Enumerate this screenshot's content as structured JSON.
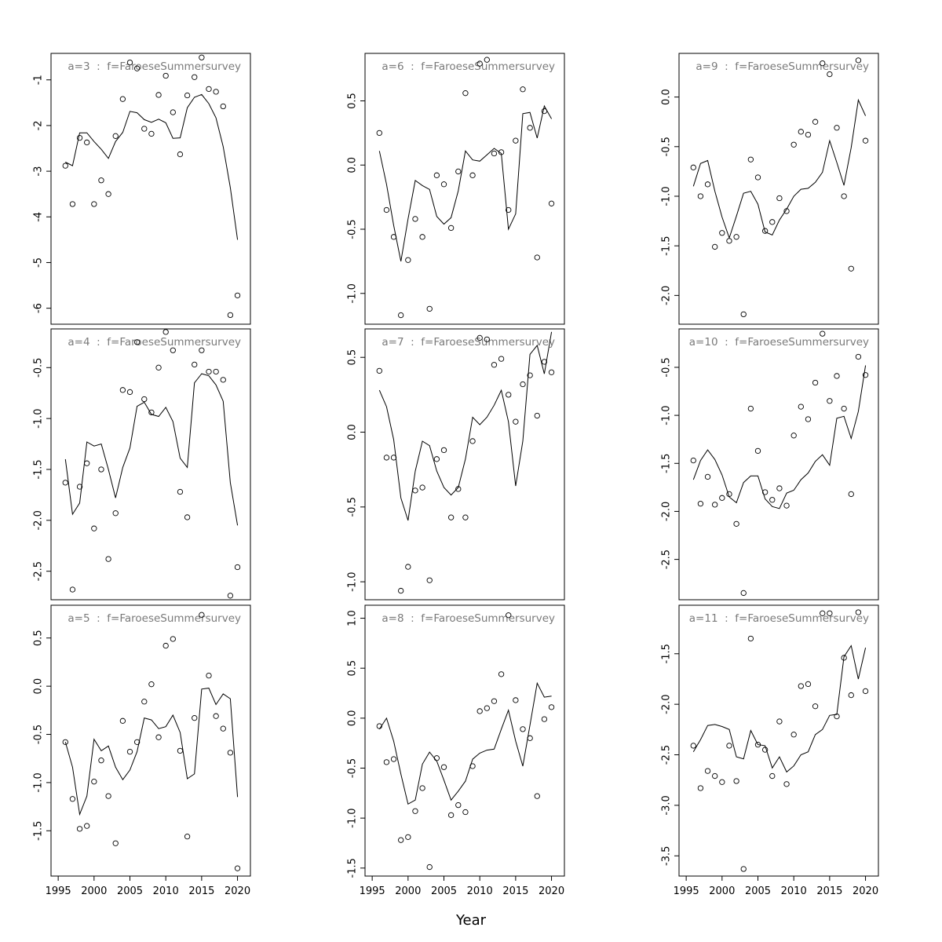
{
  "figure": {
    "xlabel": "Year",
    "x_ticks": [
      1995,
      2000,
      2005,
      2010,
      2015,
      2020
    ]
  },
  "chart_data": [
    {
      "type": "line",
      "title": "a=3  :  f=FaroeseSummersurvey",
      "x": [
        1996,
        1997,
        1998,
        1999,
        2000,
        2001,
        2002,
        2003,
        2004,
        2005,
        2006,
        2007,
        2008,
        2009,
        2010,
        2011,
        2012,
        2013,
        2014,
        2015,
        2016,
        2017,
        2018,
        2019,
        2020
      ],
      "observed": [
        -2.88,
        -3.72,
        -2.27,
        -2.37,
        -3.72,
        -3.2,
        -3.5,
        -2.23,
        -1.42,
        -0.62,
        -0.75,
        -2.07,
        -2.18,
        -1.33,
        -0.91,
        -1.71,
        -2.63,
        -1.34,
        -0.94,
        -0.51,
        -1.2,
        -1.26,
        -1.58,
        -6.15,
        -5.72
      ],
      "fitted": [
        -2.8,
        -2.88,
        -2.16,
        -2.16,
        -2.35,
        -2.52,
        -2.72,
        -2.35,
        -2.15,
        -1.69,
        -1.72,
        -1.87,
        -1.93,
        -1.86,
        -1.94,
        -2.28,
        -2.27,
        -1.61,
        -1.38,
        -1.32,
        -1.52,
        -1.83,
        -2.46,
        -3.36,
        -4.5
      ],
      "ylim": [
        -6.35,
        -0.42
      ],
      "y_ticks": [
        -6,
        -5,
        -4,
        -3,
        -2,
        -1
      ]
    },
    {
      "type": "line",
      "title": "a=4  :  f=FaroeseSummersurvey",
      "x": [
        1996,
        1997,
        1998,
        1999,
        2000,
        2001,
        2002,
        2003,
        2004,
        2005,
        2006,
        2007,
        2008,
        2009,
        2010,
        2011,
        2012,
        2013,
        2014,
        2015,
        2016,
        2017,
        2018,
        2019,
        2020
      ],
      "observed": [
        -1.63,
        -2.68,
        -1.67,
        -1.44,
        -2.08,
        -1.5,
        -2.38,
        -1.93,
        -0.72,
        -0.74,
        -0.25,
        -0.81,
        -0.94,
        -0.5,
        -0.15,
        -0.33,
        -1.72,
        -1.97,
        -0.47,
        -0.33,
        -0.54,
        -0.54,
        -0.62,
        -2.74,
        -2.46
      ],
      "fitted": [
        -1.4,
        -1.94,
        -1.83,
        -1.23,
        -1.27,
        -1.25,
        -1.5,
        -1.78,
        -1.48,
        -1.29,
        -0.88,
        -0.84,
        -0.96,
        -0.98,
        -0.89,
        -1.03,
        -1.39,
        -1.48,
        -0.65,
        -0.56,
        -0.58,
        -0.67,
        -0.83,
        -1.63,
        -2.05
      ],
      "ylim": [
        -2.78,
        -0.12
      ],
      "y_ticks": [
        -2.5,
        -2.0,
        -1.5,
        -1.0,
        -0.5
      ]
    },
    {
      "type": "line",
      "title": "a=5  :  f=FaroeseSummersurvey",
      "x": [
        1996,
        1997,
        1998,
        1999,
        2000,
        2001,
        2002,
        2003,
        2004,
        2005,
        2006,
        2007,
        2008,
        2009,
        2010,
        2011,
        2012,
        2013,
        2014,
        2015,
        2016,
        2017,
        2018,
        2019,
        2020
      ],
      "observed": [
        -0.58,
        -1.17,
        -1.48,
        -1.45,
        -0.99,
        -0.77,
        -1.14,
        -1.63,
        -0.36,
        -0.68,
        -0.58,
        -0.16,
        0.02,
        -0.53,
        0.42,
        0.49,
        -0.67,
        -1.56,
        -0.33,
        0.74,
        0.11,
        -0.31,
        -0.44,
        -0.69,
        -1.89
      ],
      "fitted": [
        -0.58,
        -0.84,
        -1.33,
        -1.14,
        -0.55,
        -0.67,
        -0.62,
        -0.84,
        -0.97,
        -0.87,
        -0.68,
        -0.33,
        -0.35,
        -0.44,
        -0.42,
        -0.3,
        -0.48,
        -0.96,
        -0.91,
        -0.03,
        -0.02,
        -0.19,
        -0.08,
        -0.13,
        -1.15
      ],
      "ylim": [
        -1.97,
        0.84
      ],
      "y_ticks": [
        -1.5,
        -1.0,
        -0.5,
        0.0,
        0.5
      ]
    },
    {
      "type": "line",
      "title": "a=6  :  f=FaroeseSummersurvey",
      "x": [
        1996,
        1997,
        1998,
        1999,
        2000,
        2001,
        2002,
        2003,
        2004,
        2005,
        2006,
        2007,
        2008,
        2009,
        2010,
        2011,
        2012,
        2013,
        2014,
        2015,
        2016,
        2017,
        2018,
        2019,
        2020
      ],
      "observed": [
        0.25,
        -0.35,
        -0.56,
        -1.17,
        -0.74,
        -0.42,
        -0.56,
        -1.12,
        -0.08,
        -0.15,
        -0.49,
        -0.05,
        0.56,
        -0.08,
        0.79,
        0.82,
        0.09,
        0.1,
        -0.35,
        0.19,
        0.59,
        0.29,
        -0.72,
        0.42,
        -0.3
      ],
      "fitted": [
        0.11,
        -0.15,
        -0.47,
        -0.75,
        -0.42,
        -0.12,
        -0.16,
        -0.19,
        -0.4,
        -0.46,
        -0.41,
        -0.2,
        0.11,
        0.04,
        0.03,
        0.08,
        0.13,
        0.09,
        -0.5,
        -0.38,
        0.4,
        0.41,
        0.21,
        0.46,
        0.36
      ],
      "ylim": [
        -1.24,
        0.87
      ],
      "y_ticks": [
        -1.0,
        -0.5,
        0.0,
        0.5
      ]
    },
    {
      "type": "line",
      "title": "a=7  :  f=FaroeseSummersurvey",
      "x": [
        1996,
        1997,
        1998,
        1999,
        2000,
        2001,
        2002,
        2003,
        2004,
        2005,
        2006,
        2007,
        2008,
        2009,
        2010,
        2011,
        2012,
        2013,
        2014,
        2015,
        2016,
        2017,
        2018,
        2019,
        2020
      ],
      "observed": [
        0.41,
        -0.17,
        -0.17,
        -1.06,
        -0.9,
        -0.39,
        -0.37,
        -0.99,
        -0.18,
        -0.12,
        -0.57,
        -0.38,
        -0.57,
        -0.06,
        0.63,
        0.62,
        0.45,
        0.49,
        0.25,
        0.07,
        0.32,
        0.38,
        0.11,
        0.47,
        0.4
      ],
      "fitted": [
        0.28,
        0.17,
        -0.05,
        -0.44,
        -0.59,
        -0.26,
        -0.06,
        -0.09,
        -0.26,
        -0.37,
        -0.42,
        -0.37,
        -0.18,
        0.1,
        0.05,
        0.1,
        0.18,
        0.28,
        0.07,
        -0.36,
        -0.06,
        0.52,
        0.58,
        0.39,
        0.67
      ],
      "ylim": [
        -1.12,
        0.69
      ],
      "y_ticks": [
        -1.0,
        -0.5,
        0.0,
        0.5
      ]
    },
    {
      "type": "line",
      "title": "a=8  :  f=FaroeseSummersurvey",
      "x": [
        1996,
        1997,
        1998,
        1999,
        2000,
        2001,
        2002,
        2003,
        2004,
        2005,
        2006,
        2007,
        2008,
        2009,
        2010,
        2011,
        2012,
        2013,
        2014,
        2015,
        2016,
        2017,
        2018,
        2019,
        2020
      ],
      "observed": [
        -0.08,
        -0.44,
        -0.41,
        -1.22,
        -1.19,
        -0.93,
        -0.7,
        -1.49,
        -0.4,
        -0.49,
        -0.97,
        -0.87,
        -0.94,
        -0.48,
        0.07,
        0.1,
        0.17,
        0.44,
        1.03,
        0.18,
        -0.11,
        -0.2,
        -0.78,
        -0.01,
        0.11
      ],
      "fitted": [
        -0.11,
        0.0,
        -0.23,
        -0.56,
        -0.86,
        -0.82,
        -0.46,
        -0.34,
        -0.43,
        -0.62,
        -0.82,
        -0.73,
        -0.63,
        -0.41,
        -0.35,
        -0.32,
        -0.31,
        -0.11,
        0.08,
        -0.23,
        -0.48,
        -0.07,
        0.35,
        0.21,
        0.22
      ],
      "ylim": [
        -1.58,
        1.13
      ],
      "y_ticks": [
        -1.5,
        -1.0,
        -0.5,
        0.0,
        0.5,
        1.0
      ]
    },
    {
      "type": "line",
      "title": "a=9  :  f=FaroeseSummersurvey",
      "x": [
        1996,
        1997,
        1998,
        1999,
        2000,
        2001,
        2002,
        2003,
        2004,
        2005,
        2006,
        2007,
        2008,
        2009,
        2010,
        2011,
        2012,
        2013,
        2014,
        2015,
        2016,
        2017,
        2018,
        2019,
        2020
      ],
      "observed": [
        -0.71,
        -1.0,
        -0.88,
        -1.51,
        -1.37,
        -1.45,
        -1.41,
        -2.19,
        -0.63,
        -0.81,
        -1.35,
        -1.26,
        -1.02,
        -1.15,
        -0.48,
        -0.35,
        -0.38,
        -0.25,
        0.34,
        0.23,
        -0.31,
        -1.0,
        -1.73,
        0.37,
        -0.44
      ],
      "fitted": [
        -0.9,
        -0.67,
        -0.64,
        -0.95,
        -1.21,
        -1.42,
        -1.2,
        -0.97,
        -0.95,
        -1.08,
        -1.36,
        -1.39,
        -1.24,
        -1.13,
        -1.0,
        -0.93,
        -0.92,
        -0.86,
        -0.76,
        -0.44,
        -0.66,
        -0.89,
        -0.51,
        -0.03,
        -0.19
      ],
      "ylim": [
        -2.29,
        0.44
      ],
      "y_ticks": [
        -2.0,
        -1.5,
        -1.0,
        -0.5,
        0.0
      ]
    },
    {
      "type": "line",
      "title": "a=10  :  f=FaroeseSummersurvey",
      "x": [
        1996,
        1997,
        1998,
        1999,
        2000,
        2001,
        2002,
        2003,
        2004,
        2005,
        2006,
        2007,
        2008,
        2009,
        2010,
        2011,
        2012,
        2013,
        2014,
        2015,
        2016,
        2017,
        2018,
        2019,
        2020
      ],
      "observed": [
        -1.47,
        -1.92,
        -1.64,
        -1.93,
        -1.86,
        -1.82,
        -2.13,
        -2.85,
        -0.93,
        -1.37,
        -1.8,
        -1.88,
        -1.76,
        -1.94,
        -1.21,
        -0.91,
        -1.04,
        -0.66,
        -0.15,
        -0.85,
        -0.59,
        -0.93,
        -1.82,
        -0.39,
        -0.58
      ],
      "fitted": [
        -1.67,
        -1.47,
        -1.36,
        -1.46,
        -1.62,
        -1.85,
        -1.91,
        -1.7,
        -1.63,
        -1.63,
        -1.87,
        -1.95,
        -1.97,
        -1.81,
        -1.78,
        -1.67,
        -1.6,
        -1.48,
        -1.41,
        -1.52,
        -1.03,
        -1.01,
        -1.24,
        -0.96,
        -0.48
      ],
      "ylim": [
        -2.92,
        -0.1
      ],
      "y_ticks": [
        -2.5,
        -2.0,
        -1.5,
        -1.0,
        -0.5
      ]
    },
    {
      "type": "line",
      "title": "a=11  :  f=FaroeseSummersurvey",
      "x": [
        1996,
        1997,
        1998,
        1999,
        2000,
        2001,
        2002,
        2003,
        2004,
        2005,
        2006,
        2007,
        2008,
        2009,
        2010,
        2011,
        2012,
        2013,
        2014,
        2015,
        2016,
        2017,
        2018,
        2019,
        2020
      ],
      "observed": [
        -2.41,
        -2.83,
        -2.66,
        -2.71,
        -2.77,
        -2.41,
        -2.76,
        -3.63,
        -1.35,
        -2.4,
        -2.45,
        -2.71,
        -2.17,
        -2.79,
        -2.3,
        -1.82,
        -1.8,
        -2.02,
        -1.1,
        -1.1,
        -2.12,
        -1.54,
        -1.91,
        -1.09,
        -1.87
      ],
      "fitted": [
        -2.47,
        -2.35,
        -2.21,
        -2.2,
        -2.22,
        -2.25,
        -2.52,
        -2.54,
        -2.26,
        -2.4,
        -2.41,
        -2.63,
        -2.52,
        -2.67,
        -2.61,
        -2.5,
        -2.47,
        -2.3,
        -2.25,
        -2.11,
        -2.1,
        -1.53,
        -1.42,
        -1.75,
        -1.44
      ],
      "ylim": [
        -3.7,
        -1.02
      ],
      "y_ticks": [
        -3.5,
        -3.0,
        -2.5,
        -2.0,
        -1.5
      ]
    }
  ]
}
